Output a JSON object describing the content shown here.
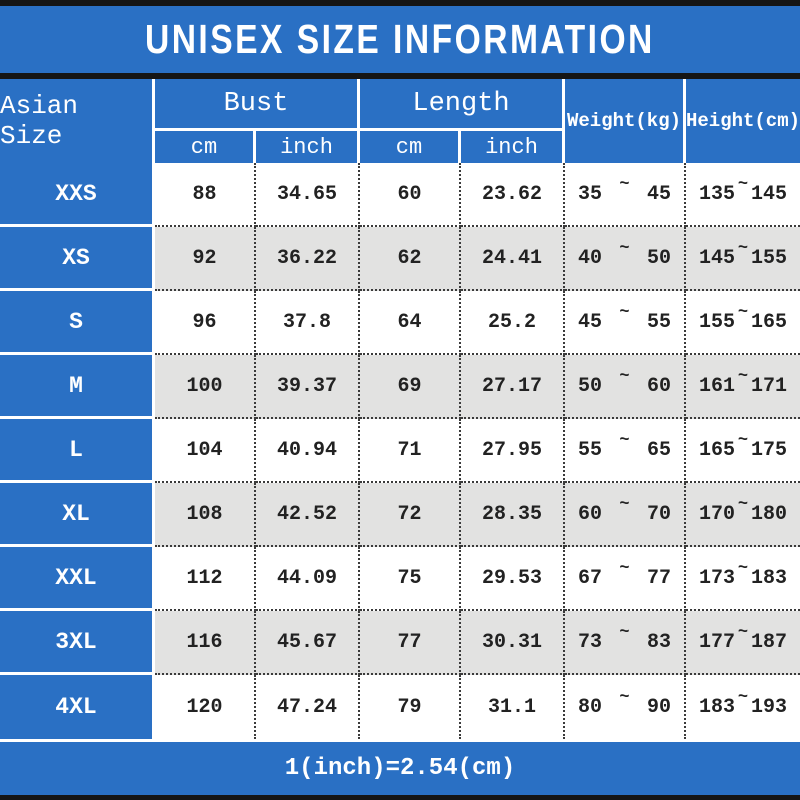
{
  "title": "UNISEX SIZE INFORMATION",
  "footer_note": "1(inch)=2.54(cm)",
  "colors": {
    "accent_blue": "#2A70C4",
    "stripe_gray": "#E2E2E1",
    "border_black": "#151515",
    "text_white": "#FFFFFF"
  },
  "table": {
    "size_col_header": "Asian Size",
    "tilde": "~",
    "groups": [
      {
        "label": "Bust",
        "sub": [
          "cm",
          "inch"
        ]
      },
      {
        "label": "Length",
        "sub": [
          "cm",
          "inch"
        ]
      }
    ],
    "single_headers": [
      "Weight(kg)",
      "Height(cm)"
    ],
    "rows": [
      {
        "size": "XXS",
        "bust_cm": "88",
        "bust_inch": "34.65",
        "length_cm": "60",
        "length_inch": "23.62",
        "w_min": "35",
        "w_max": "45",
        "h_min": "135",
        "h_max": "145"
      },
      {
        "size": "XS",
        "bust_cm": "92",
        "bust_inch": "36.22",
        "length_cm": "62",
        "length_inch": "24.41",
        "w_min": "40",
        "w_max": "50",
        "h_min": "145",
        "h_max": "155"
      },
      {
        "size": "S",
        "bust_cm": "96",
        "bust_inch": "37.8",
        "length_cm": "64",
        "length_inch": "25.2",
        "w_min": "45",
        "w_max": "55",
        "h_min": "155",
        "h_max": "165"
      },
      {
        "size": "M",
        "bust_cm": "100",
        "bust_inch": "39.37",
        "length_cm": "69",
        "length_inch": "27.17",
        "w_min": "50",
        "w_max": "60",
        "h_min": "161",
        "h_max": "171"
      },
      {
        "size": "L",
        "bust_cm": "104",
        "bust_inch": "40.94",
        "length_cm": "71",
        "length_inch": "27.95",
        "w_min": "55",
        "w_max": "65",
        "h_min": "165",
        "h_max": "175"
      },
      {
        "size": "XL",
        "bust_cm": "108",
        "bust_inch": "42.52",
        "length_cm": "72",
        "length_inch": "28.35",
        "w_min": "60",
        "w_max": "70",
        "h_min": "170",
        "h_max": "180"
      },
      {
        "size": "XXL",
        "bust_cm": "112",
        "bust_inch": "44.09",
        "length_cm": "75",
        "length_inch": "29.53",
        "w_min": "67",
        "w_max": "77",
        "h_min": "173",
        "h_max": "183"
      },
      {
        "size": "3XL",
        "bust_cm": "116",
        "bust_inch": "45.67",
        "length_cm": "77",
        "length_inch": "30.31",
        "w_min": "73",
        "w_max": "83",
        "h_min": "177",
        "h_max": "187"
      },
      {
        "size": "4XL",
        "bust_cm": "120",
        "bust_inch": "47.24",
        "length_cm": "79",
        "length_inch": "31.1",
        "w_min": "80",
        "w_max": "90",
        "h_min": "183",
        "h_max": "193"
      }
    ]
  },
  "chart_data": {
    "type": "table",
    "title": "UNISEX SIZE INFORMATION",
    "columns": [
      "Asian Size",
      "Bust cm",
      "Bust inch",
      "Length cm",
      "Length inch",
      "Weight(kg)",
      "Height(cm)"
    ],
    "rows": [
      [
        "XXS",
        88,
        34.65,
        60,
        23.62,
        "35 ~ 45",
        "135 ~ 145"
      ],
      [
        "XS",
        92,
        36.22,
        62,
        24.41,
        "40 ~ 50",
        "145 ~ 155"
      ],
      [
        "S",
        96,
        37.8,
        64,
        25.2,
        "45 ~ 55",
        "155 ~ 165"
      ],
      [
        "M",
        100,
        39.37,
        69,
        27.17,
        "50 ~ 60",
        "161 ~ 171"
      ],
      [
        "L",
        104,
        40.94,
        71,
        27.95,
        "55 ~ 65",
        "165 ~ 175"
      ],
      [
        "XL",
        108,
        42.52,
        72,
        28.35,
        "60 ~ 70",
        "170 ~ 180"
      ],
      [
        "XXL",
        112,
        44.09,
        75,
        29.53,
        "67 ~ 77",
        "173 ~ 183"
      ],
      [
        "3XL",
        116,
        45.67,
        77,
        30.31,
        "73 ~ 83",
        "177 ~ 187"
      ],
      [
        "4XL",
        120,
        47.24,
        79,
        31.1,
        "80 ~ 90",
        "183 ~ 193"
      ]
    ],
    "note": "1(inch)=2.54(cm)",
    "layout_hints": {
      "header_background": "#2A70C4",
      "striped_rows": true,
      "borders": "dotted"
    }
  }
}
